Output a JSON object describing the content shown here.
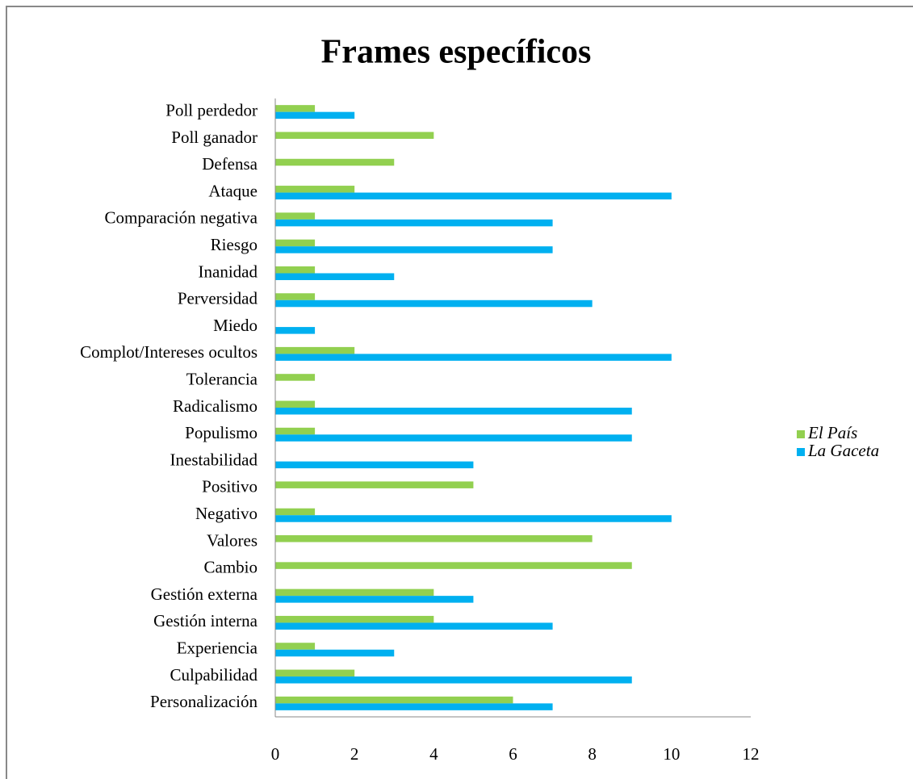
{
  "chart_data": {
    "type": "bar",
    "orientation": "horizontal",
    "title": "Frames específicos",
    "categories": [
      "Poll perdedor",
      "Poll ganador",
      "Defensa",
      "Ataque",
      "Comparación negativa",
      "Riesgo",
      "Inanidad",
      "Perversidad",
      "Miedo",
      "Complot/Intereses ocultos",
      "Tolerancia",
      "Radicalismo",
      "Populismo",
      "Inestabilidad",
      "Positivo",
      "Negativo",
      "Valores",
      "Cambio",
      "Gestión externa",
      "Gestión interna",
      "Experiencia",
      "Culpabilidad",
      "Personalización"
    ],
    "series": [
      {
        "name": "El País",
        "color": "#92d050",
        "values": [
          1,
          4,
          3,
          2,
          1,
          1,
          1,
          1,
          0,
          2,
          1,
          1,
          1,
          0,
          5,
          1,
          8,
          9,
          4,
          4,
          1,
          2,
          6
        ]
      },
      {
        "name": "La Gaceta",
        "color": "#00b0f0",
        "values": [
          2,
          0,
          0,
          10,
          7,
          7,
          3,
          8,
          1,
          10,
          0,
          9,
          9,
          5,
          0,
          10,
          0,
          0,
          5,
          7,
          3,
          9,
          7
        ]
      }
    ],
    "xlim": [
      0,
      12
    ],
    "xticks": [
      0,
      2,
      4,
      6,
      8,
      10,
      12
    ],
    "grid": false,
    "legend": "right"
  }
}
